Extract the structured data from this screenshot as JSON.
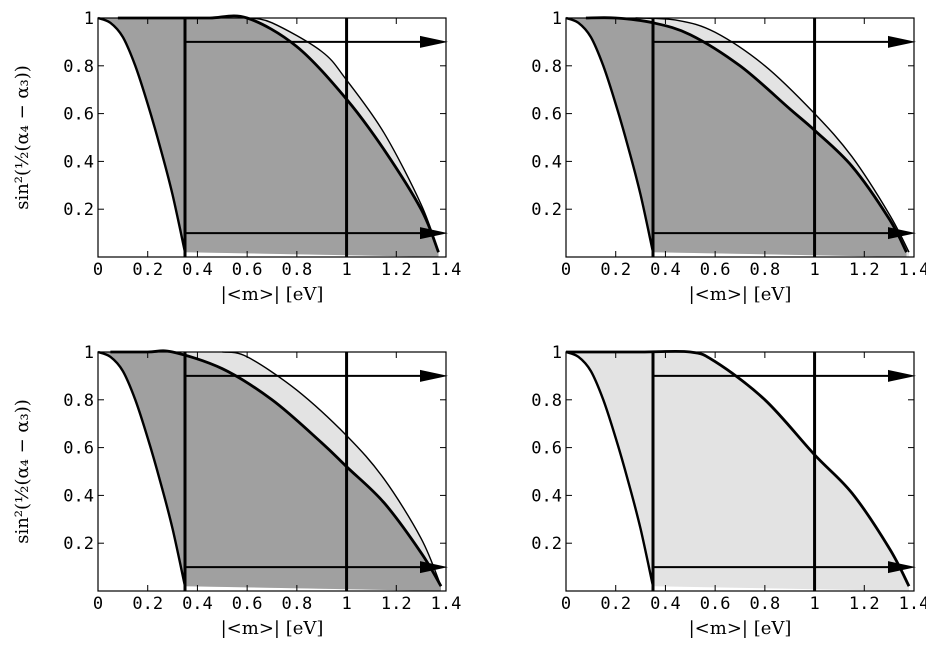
{
  "chart_data": [
    {
      "type": "area",
      "xlabel": "|<m>|  [eV]",
      "ylabel": "sin²(½(α₄ − α₃))",
      "xlim": [
        0,
        1.4
      ],
      "ylim": [
        0,
        1
      ],
      "xticks": [
        "0",
        "0.2",
        "0.4",
        "0.6",
        "0.8",
        "1",
        "1.2",
        "1.4"
      ],
      "yticks": [
        "0.2",
        "0.4",
        "0.6",
        "0.8",
        "1"
      ],
      "vertical_lines_x": [
        0.35,
        1.0
      ],
      "arrows": [
        {
          "y": 0.9,
          "x_from": 0.35,
          "x_to": 1.4
        },
        {
          "y": 0.1,
          "x_from": 0.35,
          "x_to": 1.4
        }
      ],
      "curves": [
        {
          "name": "lower",
          "x": [
            0,
            0.05,
            0.1,
            0.15,
            0.2,
            0.25,
            0.3,
            0.35
          ],
          "y": [
            1,
            0.98,
            0.92,
            0.8,
            0.64,
            0.46,
            0.26,
            0.02
          ]
        },
        {
          "name": "dark-upper",
          "x": [
            0.08,
            0.3,
            0.45,
            0.6,
            0.8,
            1.0,
            1.15,
            1.3,
            1.37
          ],
          "y": [
            1,
            1,
            1,
            1,
            0.88,
            0.66,
            0.45,
            0.2,
            0.02
          ]
        },
        {
          "name": "light-upper",
          "x": [
            0.6,
            0.7,
            0.9,
            1.0,
            1.15,
            1.3,
            1.37
          ],
          "y": [
            1,
            0.98,
            0.86,
            0.74,
            0.52,
            0.22,
            0.02
          ]
        }
      ],
      "fills": {
        "dark": "#a0a0a0",
        "light": "#e3e3e3"
      }
    },
    {
      "type": "area",
      "xlabel": "|<m>|  [eV]",
      "ylabel": "",
      "xlim": [
        0,
        1.4
      ],
      "ylim": [
        0,
        1
      ],
      "xticks": [
        "0",
        "0.2",
        "0.4",
        "0.6",
        "0.8",
        "1",
        "1.2",
        "1.4"
      ],
      "yticks": [
        "0.2",
        "0.4",
        "0.6",
        "0.8",
        "1"
      ],
      "vertical_lines_x": [
        0.35,
        1.0
      ],
      "arrows": [
        {
          "y": 0.9,
          "x_from": 0.35,
          "x_to": 1.4
        },
        {
          "y": 0.1,
          "x_from": 0.35,
          "x_to": 1.4
        }
      ],
      "curves": [
        {
          "name": "lower",
          "x": [
            0,
            0.05,
            0.1,
            0.15,
            0.2,
            0.25,
            0.3,
            0.35
          ],
          "y": [
            1,
            0.98,
            0.92,
            0.8,
            0.64,
            0.46,
            0.26,
            0.02
          ]
        },
        {
          "name": "dark-upper",
          "x": [
            0.08,
            0.2,
            0.35,
            0.5,
            0.7,
            0.9,
            1.0,
            1.15,
            1.3,
            1.37
          ],
          "y": [
            1,
            1,
            0.98,
            0.93,
            0.8,
            0.62,
            0.53,
            0.38,
            0.16,
            0.02
          ]
        },
        {
          "name": "light-upper",
          "x": [
            0.28,
            0.45,
            0.6,
            0.8,
            1.0,
            1.15,
            1.3,
            1.38
          ],
          "y": [
            1,
            0.99,
            0.94,
            0.8,
            0.6,
            0.42,
            0.18,
            0.02
          ]
        }
      ],
      "fills": {
        "dark": "#a0a0a0",
        "light": "#e3e3e3"
      }
    },
    {
      "type": "area",
      "xlabel": "|<m>|  [eV]",
      "ylabel": "sin²(½(α₄ − α₃))",
      "xlim": [
        0,
        1.4
      ],
      "ylim": [
        0,
        1
      ],
      "xticks": [
        "0",
        "0.2",
        "0.4",
        "0.6",
        "0.8",
        "1",
        "1.2",
        "1.4"
      ],
      "yticks": [
        "0.2",
        "0.4",
        "0.6",
        "0.8",
        "1"
      ],
      "vertical_lines_x": [
        0.35,
        1.0
      ],
      "arrows": [
        {
          "y": 0.9,
          "x_from": 0.35,
          "x_to": 1.4
        },
        {
          "y": 0.1,
          "x_from": 0.35,
          "x_to": 1.4
        }
      ],
      "curves": [
        {
          "name": "lower",
          "x": [
            0,
            0.05,
            0.1,
            0.15,
            0.2,
            0.25,
            0.3,
            0.35
          ],
          "y": [
            1,
            0.98,
            0.92,
            0.8,
            0.64,
            0.46,
            0.26,
            0.02
          ]
        },
        {
          "name": "dark-upper",
          "x": [
            0.05,
            0.2,
            0.3,
            0.5,
            0.7,
            0.9,
            1.0,
            1.15,
            1.3,
            1.38
          ],
          "y": [
            1,
            1,
            1,
            0.93,
            0.8,
            0.62,
            0.52,
            0.37,
            0.16,
            0.02
          ]
        },
        {
          "name": "light-upper",
          "x": [
            0.5,
            0.6,
            0.8,
            1.0,
            1.15,
            1.3,
            1.38
          ],
          "y": [
            1,
            0.98,
            0.84,
            0.65,
            0.47,
            0.22,
            0.02
          ]
        }
      ],
      "fills": {
        "dark": "#a0a0a0",
        "light": "#e3e3e3"
      }
    },
    {
      "type": "area",
      "xlabel": "|<m>|  [eV]",
      "ylabel": "",
      "xlim": [
        0,
        1.4
      ],
      "ylim": [
        0,
        1
      ],
      "xticks": [
        "0",
        "0.2",
        "0.4",
        "0.6",
        "0.8",
        "1",
        "1.2",
        "1.4"
      ],
      "yticks": [
        "0.2",
        "0.4",
        "0.6",
        "0.8",
        "1"
      ],
      "vertical_lines_x": [
        0.35,
        1.0
      ],
      "arrows": [
        {
          "y": 0.9,
          "x_from": 0.35,
          "x_to": 1.4
        },
        {
          "y": 0.1,
          "x_from": 0.35,
          "x_to": 1.4
        }
      ],
      "curves": [
        {
          "name": "lower",
          "x": [
            0,
            0.05,
            0.1,
            0.15,
            0.2,
            0.25,
            0.3,
            0.35
          ],
          "y": [
            1,
            0.98,
            0.92,
            0.8,
            0.64,
            0.46,
            0.26,
            0.02
          ]
        },
        {
          "name": "light-upper",
          "x": [
            0.0,
            0.3,
            0.5,
            0.6,
            0.8,
            1.0,
            1.15,
            1.3,
            1.38
          ],
          "y": [
            1,
            1,
            1,
            0.96,
            0.8,
            0.57,
            0.41,
            0.18,
            0.02
          ]
        }
      ],
      "fills": {
        "dark": "#a0a0a0",
        "light": "#e3e3e3"
      }
    }
  ]
}
